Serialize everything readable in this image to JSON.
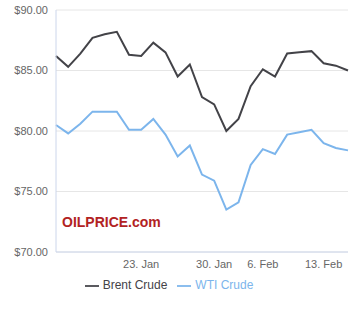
{
  "chart_data": {
    "type": "line",
    "categories": [
      null,
      null,
      null,
      null,
      null,
      null,
      null,
      "23. Jan",
      null,
      null,
      null,
      null,
      null,
      "30. Jan",
      null,
      null,
      null,
      "6. Feb",
      null,
      null,
      null,
      null,
      "13. Feb",
      null,
      null
    ],
    "series": [
      {
        "name": "WTI Crude",
        "color": "#7cb5ec",
        "values": [
          80.5,
          79.8,
          80.6,
          81.6,
          81.6,
          81.6,
          80.1,
          80.1,
          81.0,
          79.7,
          77.9,
          78.8,
          76.4,
          75.9,
          73.5,
          74.1,
          77.2,
          78.5,
          78.1,
          79.7,
          79.9,
          80.1,
          79.0,
          78.6,
          78.4
        ]
      },
      {
        "name": "Brent Crude",
        "color": "#434348",
        "values": [
          86.2,
          85.3,
          86.4,
          87.7,
          88.0,
          88.2,
          86.3,
          86.2,
          87.3,
          86.5,
          84.5,
          85.5,
          82.8,
          82.2,
          80.0,
          81.0,
          83.7,
          85.1,
          84.5,
          86.4,
          86.5,
          86.6,
          85.6,
          85.4,
          85.0
        ]
      }
    ],
    "ylim": [
      70,
      90
    ],
    "yticks": [
      {
        "value": 70,
        "label": "$70.00"
      },
      {
        "value": 75,
        "label": "$75.00"
      },
      {
        "value": 80,
        "label": "$80.00"
      },
      {
        "value": 85,
        "label": "$85.00"
      },
      {
        "value": 90,
        "label": "$90.00"
      }
    ],
    "grid": true,
    "legend": "bottom",
    "annotations": [
      "OILPRICE.com"
    ]
  }
}
